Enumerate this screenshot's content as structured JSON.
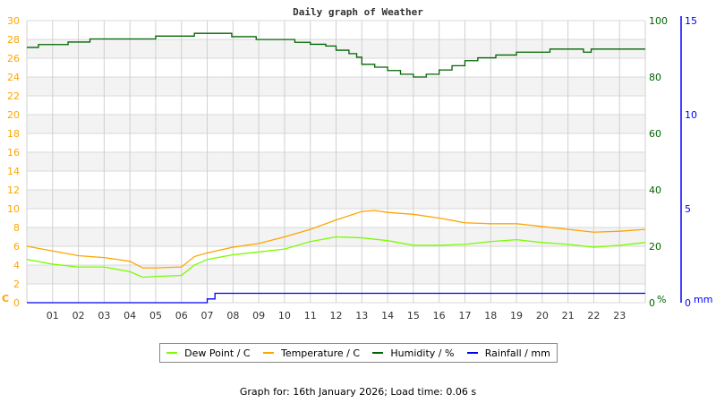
{
  "chart_data": {
    "type": "line",
    "title": "Daily graph of Weather",
    "x_ticks": [
      "01",
      "02",
      "03",
      "04",
      "05",
      "06",
      "07",
      "08",
      "09",
      "10",
      "11",
      "12",
      "13",
      "14",
      "15",
      "16",
      "17",
      "18",
      "19",
      "20",
      "21",
      "22",
      "23"
    ],
    "xlim": [
      0,
      24
    ],
    "grid": true,
    "legend_position": "bottom",
    "axes": {
      "left": {
        "label": "C",
        "ylim": [
          0,
          30
        ],
        "ticks": [
          0,
          2,
          4,
          6,
          8,
          10,
          12,
          14,
          16,
          18,
          20,
          22,
          24,
          26,
          28,
          30
        ],
        "color": "#ffa500"
      },
      "right": {
        "label": "%",
        "ylim": [
          0,
          100
        ],
        "ticks": [
          0,
          20,
          40,
          60,
          80,
          100
        ],
        "color": "#006400"
      },
      "rain": {
        "label": "mm",
        "ylim": [
          0,
          15
        ],
        "ticks": [
          0,
          5,
          10,
          15
        ],
        "color": "#0000ff"
      }
    },
    "series": [
      {
        "name": "Dew Point / C",
        "axis": "left",
        "color": "#7cfc00",
        "x": [
          0,
          1,
          2,
          3,
          4,
          4.5,
          5,
          6,
          6.5,
          7,
          8,
          9,
          10,
          11,
          12,
          13,
          14,
          15,
          16,
          17,
          18,
          19,
          20,
          21,
          22,
          23,
          24
        ],
        "values": [
          4.6,
          4.1,
          3.8,
          3.8,
          3.3,
          2.7,
          2.8,
          2.9,
          4.0,
          4.6,
          5.1,
          5.4,
          5.7,
          6.5,
          7.0,
          6.9,
          6.6,
          6.1,
          6.1,
          6.2,
          6.5,
          6.7,
          6.4,
          6.2,
          5.9,
          6.1,
          6.4
        ]
      },
      {
        "name": "Temperature / C",
        "axis": "left",
        "color": "#ffa500",
        "x": [
          0,
          1,
          2,
          3,
          4,
          4.5,
          5,
          6,
          6.5,
          7,
          8,
          9,
          10,
          11,
          12,
          13,
          13.5,
          14,
          15,
          16,
          17,
          18,
          19,
          20,
          21,
          22,
          23,
          24
        ],
        "values": [
          6.0,
          5.5,
          5.0,
          4.8,
          4.4,
          3.7,
          3.7,
          3.8,
          4.9,
          5.3,
          5.9,
          6.3,
          7.0,
          7.8,
          8.8,
          9.7,
          9.8,
          9.6,
          9.4,
          9.0,
          8.5,
          8.4,
          8.4,
          8.1,
          7.8,
          7.5,
          7.6,
          7.8
        ]
      },
      {
        "name": "Humidity / %",
        "axis": "right",
        "color": "#006400",
        "step": true,
        "x": [
          0,
          0.45,
          1.6,
          2.45,
          5.0,
          6.5,
          7.95,
          8.9,
          10.4,
          11.0,
          11.6,
          12.0,
          12.5,
          12.8,
          13.0,
          13.5,
          14.0,
          14.5,
          15.0,
          15.5,
          16.0,
          16.5,
          17.0,
          17.5,
          18.2,
          19.0,
          20.3,
          21.6,
          21.9,
          24
        ],
        "values": [
          90.5,
          91.5,
          92.4,
          93.5,
          94.5,
          95.5,
          94.3,
          93.3,
          92.3,
          91.6,
          91.0,
          89.5,
          88.3,
          87.0,
          84.5,
          83.5,
          82.3,
          81.0,
          80.0,
          81.0,
          82.5,
          84.0,
          85.8,
          86.8,
          87.8,
          88.8,
          89.9,
          88.8,
          89.9,
          89.9
        ]
      },
      {
        "name": "Rainfall / mm",
        "axis": "rain",
        "color": "#0000ff",
        "step": true,
        "x": [
          0,
          7.0,
          7.3,
          24
        ],
        "values": [
          0,
          0.2,
          0.5,
          0.5
        ]
      }
    ]
  },
  "footer": "Graph for: 16th January 2026; Load time: 0.06 s"
}
